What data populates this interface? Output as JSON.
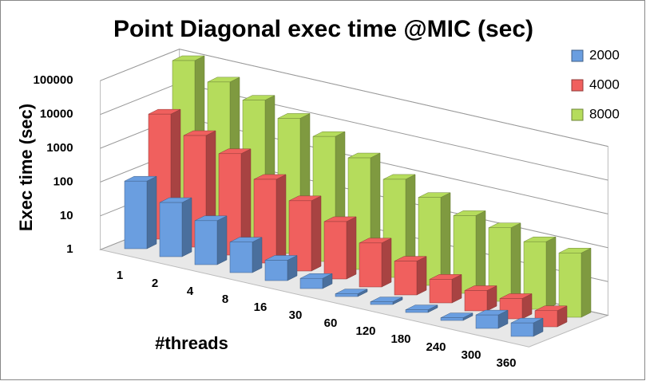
{
  "chart_data": {
    "type": "bar3d",
    "title": "Point Diagonal exec time @MIC (sec)",
    "x_label": "#threads",
    "y_label": "Exec time (sec)",
    "categories": [
      "1",
      "2",
      "4",
      "8",
      "16",
      "30",
      "60",
      "120",
      "180",
      "240",
      "300",
      "360"
    ],
    "series": [
      {
        "name": "2000",
        "color": "#6a9ee0",
        "values": [
          100,
          40,
          20,
          8,
          4,
          2,
          1.2,
          1.2,
          1.2,
          1.2,
          2.5,
          2.5
        ]
      },
      {
        "name": "4000",
        "color": "#f0605e",
        "values": [
          5000,
          2000,
          1000,
          300,
          120,
          50,
          20,
          10,
          5,
          4,
          4,
          3
        ]
      },
      {
        "name": "8000",
        "color": "#b5dc5c",
        "values": [
          100000,
          40000,
          20000,
          10000,
          5000,
          2000,
          800,
          400,
          200,
          150,
          100,
          80
        ]
      }
    ],
    "y_scale": "log",
    "ylim": [
      1,
      100000
    ],
    "yticks": [
      1,
      10,
      100,
      1000,
      10000,
      100000
    ],
    "grid": true,
    "legend_position": "right"
  }
}
